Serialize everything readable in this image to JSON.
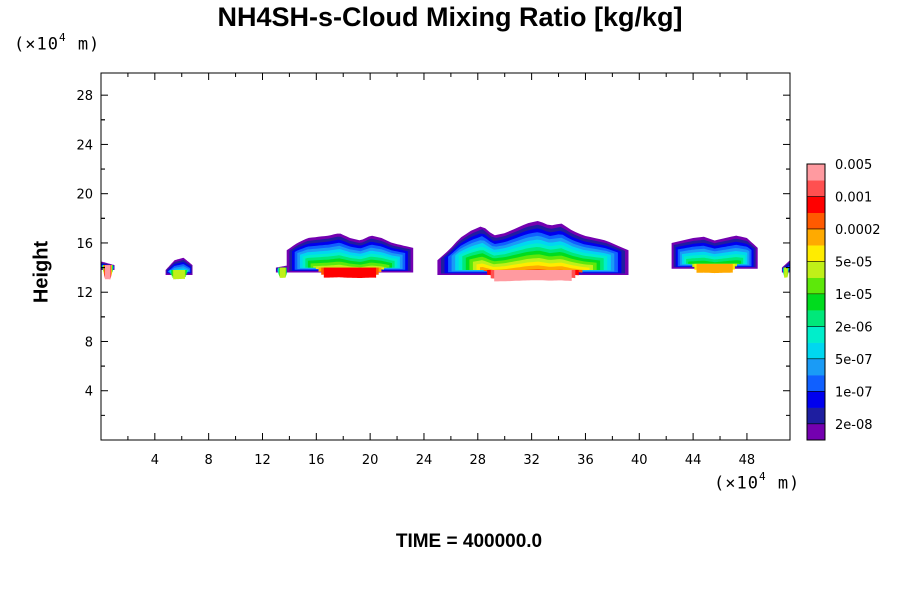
{
  "chart_data": {
    "type": "heatmap",
    "title": "NH4SH-s-Cloud Mixing Ratio [kg/kg]",
    "ylabel": "Height",
    "x_unit": {
      "prefix": "(×10",
      "exp": "4",
      "suffix": " m)"
    },
    "y_unit": {
      "prefix": "(×10",
      "exp": "4",
      "suffix": " m)"
    },
    "xlim": [
      0,
      51.2
    ],
    "ylim": [
      0,
      29.8
    ],
    "x_ticks": [
      "4",
      "8",
      "12",
      "16",
      "20",
      "24",
      "28",
      "32",
      "36",
      "40",
      "44",
      "48"
    ],
    "y_ticks": [
      "4",
      "8",
      "12",
      "16",
      "20",
      "24",
      "28"
    ],
    "colorbar": {
      "levels": [
        "2e-08",
        "1e-07",
        "5e-07",
        "2e-06",
        "1e-05",
        "5e-05",
        "0.0002",
        "0.001",
        "0.005"
      ],
      "colors": [
        "#7400b0",
        "#1e1ea0",
        "#0000ee",
        "#1060ff",
        "#1a9bf6",
        "#00d7f0",
        "#00eecb",
        "#00e87a",
        "#00dc1e",
        "#5de80a",
        "#c0f018",
        "#ffec00",
        "#ffaa00",
        "#ff5a00",
        "#ff0000",
        "#ff5050",
        "#ff9aa0"
      ]
    },
    "clouds": [
      {
        "x": [
          0,
          1
        ],
        "base": 13.8,
        "top": [
          14.5,
          14.2
        ],
        "core": 0.001
      },
      {
        "x": [
          4.8,
          6.8
        ],
        "base": 13.4,
        "top": [
          13.8,
          14.6,
          14.8,
          14.2
        ],
        "core": 1e-05
      },
      {
        "x": [
          13,
          14
        ],
        "base": 13.6,
        "top": [
          14.0,
          14.2
        ],
        "core": 1e-05
      },
      {
        "x": [
          13.8,
          23.2
        ],
        "base": 13.6,
        "top": [
          15.4,
          16.0,
          16.4,
          16.5,
          16.6,
          16.8,
          16.4,
          16.2,
          16.6,
          16.4,
          16.0,
          15.8,
          15.6
        ],
        "core": 0.0002
      },
      {
        "x": [
          25.0,
          39.2
        ],
        "base": 13.4,
        "top": [
          14.6,
          15.4,
          16.4,
          17.0,
          17.4,
          16.6,
          16.8,
          17.2,
          17.6,
          17.8,
          17.4,
          17.6,
          17.0,
          16.6,
          16.4,
          16.2,
          15.8,
          15.4
        ],
        "core": 0.001
      },
      {
        "x": [
          42.4,
          48.8
        ],
        "base": 13.9,
        "top": [
          16.0,
          16.2,
          16.4,
          16.5,
          16.2,
          16.4,
          16.6,
          16.4,
          15.6
        ],
        "core": 5e-05
      },
      {
        "x": [
          50.6,
          51.2
        ],
        "base": 13.6,
        "top": [
          14.0,
          14.6
        ],
        "core": 1e-05
      }
    ]
  },
  "footer": {
    "time_label": "TIME = 400000.0"
  }
}
